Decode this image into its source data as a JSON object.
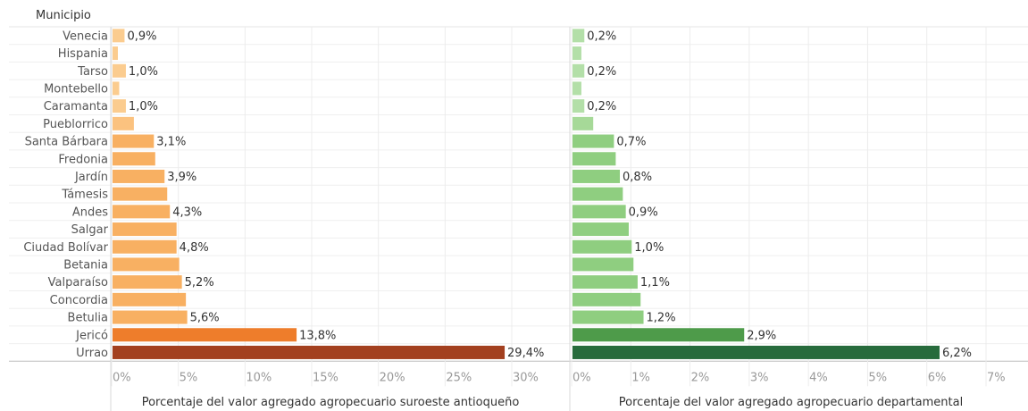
{
  "header": {
    "dimension_label": "Municipio"
  },
  "chart_data": {
    "type": "bar",
    "orientation": "horizontal",
    "categories": [
      "Venecia",
      "Hispania",
      "Tarso",
      "Montebello",
      "Caramanta",
      "Pueblorrico",
      "Santa Bárbara",
      "Fredonia",
      "Jardín",
      "Támesis",
      "Andes",
      "Salgar",
      "Ciudad Bolívar",
      "Betania",
      "Valparaíso",
      "Concordia",
      "Betulia",
      "Jericó",
      "Urrao"
    ],
    "panels": [
      {
        "xlabel": "Porcentaje del valor agregado agropecuario suroeste antioqueño",
        "xlim": [
          0,
          30
        ],
        "ticks": [
          "0%",
          "5%",
          "10%",
          "15%",
          "20%",
          "25%",
          "30%"
        ],
        "tick_values": [
          0,
          5,
          10,
          15,
          20,
          25,
          30
        ],
        "values": [
          0.9,
          0.4,
          1.0,
          0.5,
          1.0,
          1.6,
          3.1,
          3.2,
          3.9,
          4.1,
          4.3,
          4.8,
          4.8,
          5.0,
          5.2,
          5.5,
          5.6,
          13.8,
          29.4
        ],
        "labels": [
          "0,9%",
          "",
          "1,0%",
          "",
          "1,0%",
          "",
          "3,1%",
          "",
          "3,9%",
          "",
          "4,3%",
          "",
          "4,8%",
          "",
          "5,2%",
          "",
          "5,6%",
          "13,8%",
          "29,4%"
        ],
        "colors": [
          "#fbcc8f",
          "#fbcc8f",
          "#fbcc8f",
          "#fbcc8f",
          "#fbcc8f",
          "#fbc27f",
          "#f8b062",
          "#f8b062",
          "#f8b062",
          "#f8b062",
          "#f8b062",
          "#f8b062",
          "#f8b062",
          "#f8b062",
          "#f8b062",
          "#f8b062",
          "#f8b062",
          "#ee7d2b",
          "#a3401f"
        ]
      },
      {
        "xlabel": "Porcentaje del  valor agregado agropecuario departamental",
        "xlim": [
          0,
          7
        ],
        "ticks": [
          "0%",
          "1%",
          "2%",
          "3%",
          "4%",
          "5%",
          "6%",
          "7%"
        ],
        "tick_values": [
          0,
          1,
          2,
          3,
          4,
          5,
          6,
          7
        ],
        "values": [
          0.2,
          0.15,
          0.2,
          0.15,
          0.2,
          0.35,
          0.7,
          0.73,
          0.8,
          0.85,
          0.9,
          0.95,
          1.0,
          1.03,
          1.1,
          1.15,
          1.2,
          2.9,
          6.2
        ],
        "labels": [
          "0,2%",
          "",
          "0,2%",
          "",
          "0,2%",
          "",
          "0,7%",
          "",
          "0,8%",
          "",
          "0,9%",
          "",
          "1,0%",
          "",
          "1,1%",
          "",
          "1,2%",
          "2,9%",
          "6,2%"
        ],
        "colors": [
          "#b3dfa8",
          "#b3dfa8",
          "#b3dfa8",
          "#b3dfa8",
          "#b3dfa8",
          "#a6d998",
          "#8fce80",
          "#8fce80",
          "#8fce80",
          "#8fce80",
          "#8fce80",
          "#8fce80",
          "#8fce80",
          "#8fce80",
          "#8fce80",
          "#8fce80",
          "#8fce80",
          "#4e9b4a",
          "#276b3c"
        ]
      }
    ]
  }
}
